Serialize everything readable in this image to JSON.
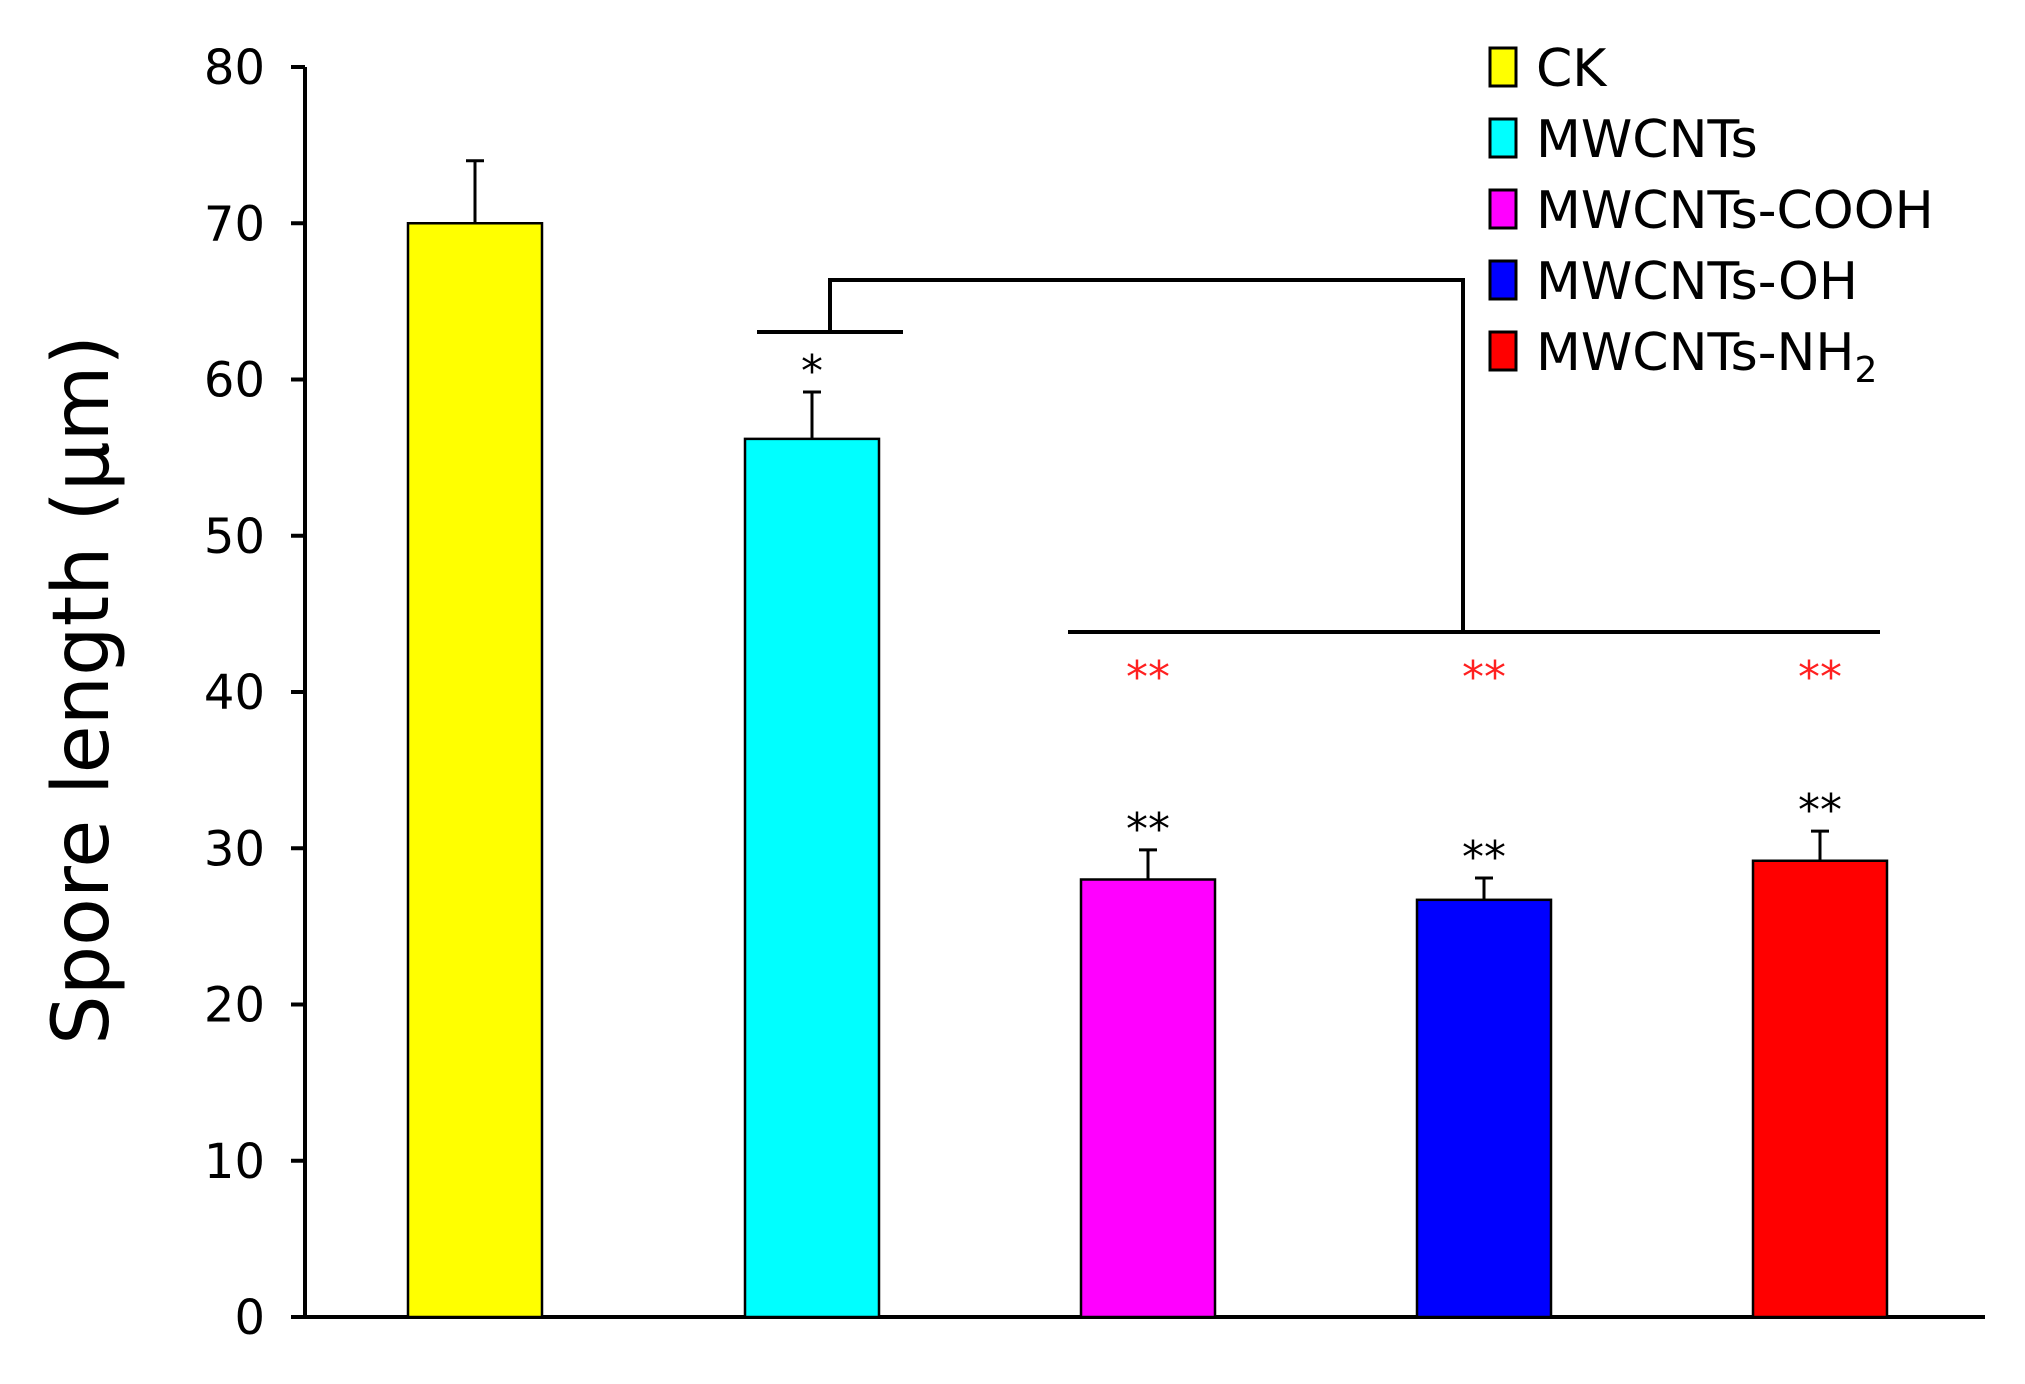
{
  "chart_data": {
    "type": "bar",
    "title": "",
    "xlabel": "",
    "ylabel": "Spore length (µm)",
    "ylim": [
      0,
      80
    ],
    "yticks": [
      0,
      10,
      20,
      30,
      40,
      50,
      60,
      70,
      80
    ],
    "grid": false,
    "categories": [
      "CK",
      "MWCNTs",
      "MWCNTs-COOH",
      "MWCNTs-OH",
      "MWCNTs-NH2"
    ],
    "values": [
      70.0,
      56.2,
      28.0,
      26.7,
      29.2
    ],
    "errors": [
      4.0,
      3.0,
      1.9,
      1.4,
      1.9
    ],
    "colors": [
      "#ffff00",
      "#00ffff",
      "#ff00ff",
      "#0000ff",
      "#ff0000"
    ],
    "legend": {
      "position": "top-right",
      "entries": [
        {
          "text": "CK"
        },
        {
          "text": "MWCNTs"
        },
        {
          "text": "MWCNTs-COOH"
        },
        {
          "text": "MWCNTs-OH"
        },
        {
          "text": "MWCNTs-NH",
          "sub": "2"
        }
      ]
    },
    "significance_vs_control": [
      "",
      "*",
      "**",
      "**",
      "**"
    ],
    "significance_vs_mwcnts": [
      "",
      "",
      "**",
      "**",
      "**"
    ],
    "significance_color": "#ff2020"
  }
}
